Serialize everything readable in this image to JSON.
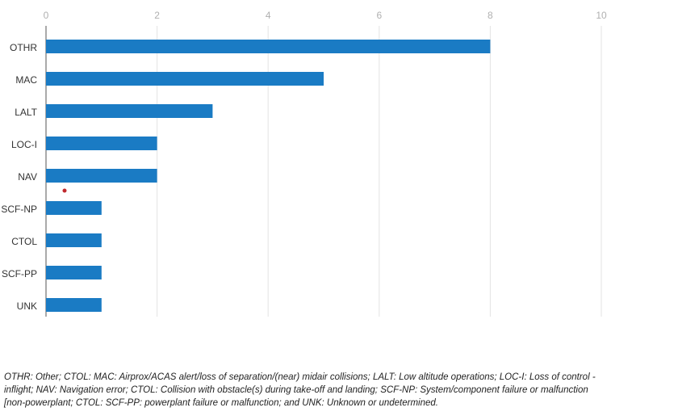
{
  "chart_data": {
    "type": "bar",
    "orientation": "horizontal",
    "categories": [
      "OTHR",
      "MAC",
      "LALT",
      "LOC-I",
      "NAV",
      "SCF-NP",
      "CTOL",
      "SCF-PP",
      "UNK"
    ],
    "values": [
      8,
      5,
      3,
      2,
      2,
      1,
      1,
      1,
      1
    ],
    "color": "#1a7bc4",
    "xlim": [
      0,
      10
    ],
    "xticks": [
      0,
      2,
      4,
      6,
      8,
      10
    ],
    "grid": true,
    "footnote": [
      "OTHR: Other; CTOL: MAC: Airprox/ACAS alert/loss of separation/(near) midair collisions; LALT: Low altitude operations; LOC-I: Loss of control -",
      "inflight; NAV: Navigation error; CTOL: Collision with obstacle(s) during take-off and landing; SCF-NP: System/component failure or malfunction",
      "[non-powerplant; CTOL: SCF-PP: powerplant failure or malfunction; and UNK: Unknown or undetermined."
    ]
  }
}
